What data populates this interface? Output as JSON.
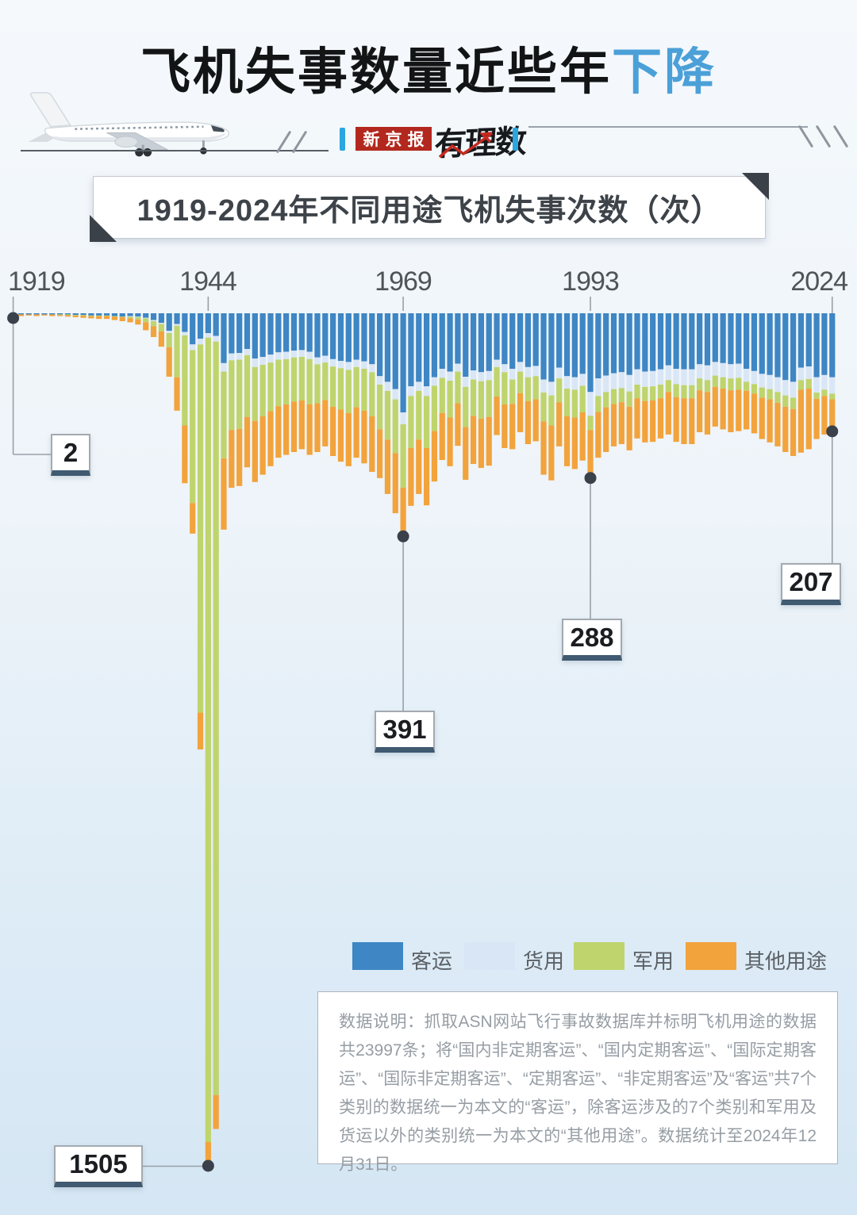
{
  "page": {
    "bg_top": "#f5f9fc",
    "bg_bottom": "#d5e6f4"
  },
  "header": {
    "title_black": "飞机失事数量近些年",
    "title_accent": "下降",
    "title_accent_color": "#4ba0d8",
    "brand_box_label": "新京报",
    "brand_box_color": "#b3281e",
    "brand_script_label": "有理数",
    "accent_bar_color": "#2aa6e0"
  },
  "banner": {
    "text": "1919-2024年不同用途飞机失事次数（次）"
  },
  "chart_data": {
    "type": "bar",
    "stacked": true,
    "orientation": "bars-hang-from-top",
    "start_year": 1919,
    "end_year": 2024,
    "unit": "次",
    "x_tick_labels": [
      "1919",
      "1944",
      "1969",
      "1993",
      "2024"
    ],
    "ylim": [
      0,
      1505
    ],
    "grid": false,
    "legend_position": "bottom",
    "series": [
      {
        "name": "客运",
        "color": "#3e86c4",
        "values": [
          1,
          2,
          2,
          2,
          2,
          2,
          2,
          2,
          3,
          3,
          4,
          4,
          4,
          5,
          6,
          5,
          6,
          8,
          12,
          17,
          31,
          19,
          33,
          55,
          45,
          35,
          40,
          88,
          71,
          70,
          63,
          80,
          77,
          73,
          69,
          68,
          66,
          65,
          68,
          78,
          75,
          81,
          84,
          86,
          82,
          85,
          90,
          111,
          121,
          134,
          175,
          129,
          121,
          129,
          113,
          98,
          103,
          89,
          112,
          101,
          104,
          102,
          82,
          90,
          98,
          86,
          95,
          93,
          117,
          121,
          96,
          111,
          113,
          107,
          139,
          115,
          110,
          106,
          104,
          109,
          99,
          103,
          102,
          99,
          92,
          98,
          99,
          99,
          90,
          92,
          86,
          88,
          90,
          89,
          98,
          102,
          107,
          109,
          113,
          118,
          121,
          96,
          94,
          113,
          109,
          113
        ]
      },
      {
        "name": "货用",
        "color": "#d9e6f5",
        "values": [
          0,
          0,
          0,
          0,
          0,
          0,
          0,
          0,
          0,
          0,
          0,
          0,
          0,
          0,
          0,
          1,
          1,
          1,
          2,
          2,
          4,
          3,
          6,
          10,
          10,
          8,
          10,
          15,
          12,
          12,
          11,
          15,
          14,
          14,
          13,
          13,
          12,
          12,
          13,
          12,
          12,
          13,
          13,
          14,
          13,
          13,
          14,
          15,
          16,
          18,
          21,
          17,
          16,
          17,
          15,
          16,
          16,
          14,
          18,
          16,
          16,
          16,
          13,
          14,
          19,
          17,
          18,
          18,
          23,
          24,
          19,
          22,
          22,
          21,
          42,
          31,
          29,
          28,
          28,
          29,
          27,
          27,
          27,
          27,
          26,
          27,
          28,
          28,
          25,
          26,
          24,
          25,
          25,
          25,
          23,
          23,
          24,
          25,
          26,
          27,
          28,
          22,
          22,
          27,
          26,
          29
        ]
      },
      {
        "name": "军用",
        "color": "#bfd46c",
        "values": [
          0,
          0,
          0,
          0,
          0,
          0,
          1,
          1,
          1,
          1,
          1,
          1,
          1,
          1,
          1,
          3,
          4,
          7,
          9,
          13,
          25,
          91,
          159,
          270,
          650,
          1420,
          1330,
          153,
          123,
          122,
          109,
          95,
          91,
          86,
          82,
          80,
          78,
          77,
          80,
          69,
          66,
          71,
          73,
          76,
          71,
          74,
          78,
          79,
          86,
          95,
          112,
          92,
          86,
          92,
          80,
          62,
          65,
          56,
          71,
          64,
          66,
          65,
          52,
          57,
          43,
          38,
          42,
          41,
          51,
          53,
          42,
          49,
          49,
          47,
          25,
          28,
          27,
          26,
          25,
          27,
          24,
          25,
          25,
          24,
          21,
          23,
          23,
          23,
          21,
          21,
          20,
          20,
          21,
          21,
          16,
          17,
          18,
          18,
          19,
          20,
          20,
          17,
          17,
          11,
          11,
          10
        ]
      },
      {
        "name": "其他用途",
        "color": "#f2a33c",
        "values": [
          1,
          3,
          2,
          3,
          2,
          3,
          2,
          3,
          3,
          4,
          4,
          5,
          5,
          6,
          7,
          7,
          9,
          14,
          19,
          27,
          52,
          59,
          102,
          54,
          65,
          42,
          60,
          126,
          102,
          101,
          89,
          108,
          103,
          97,
          91,
          89,
          89,
          86,
          89,
          86,
          82,
          87,
          92,
          94,
          89,
          93,
          98,
          86,
          96,
          106,
          83,
          102,
          96,
          101,
          89,
          83,
          86,
          75,
          93,
          85,
          87,
          86,
          68,
          77,
          80,
          69,
          76,
          74,
          94,
          97,
          78,
          88,
          91,
          85,
          82,
          81,
          79,
          75,
          74,
          77,
          71,
          73,
          73,
          71,
          75,
          79,
          81,
          81,
          74,
          75,
          70,
          72,
          74,
          73,
          68,
          70,
          73,
          76,
          77,
          80,
          83,
          111,
          107,
          71,
          68,
          55
        ]
      }
    ],
    "annotations": [
      {
        "year": 1919,
        "value": "2"
      },
      {
        "year": 1944,
        "value": "1505"
      },
      {
        "year": 1969,
        "value": "391"
      },
      {
        "year": 1993,
        "value": "288"
      },
      {
        "year": 2024,
        "value": "207"
      }
    ]
  },
  "legend": [
    {
      "label": "客运",
      "color": "#3e86c4"
    },
    {
      "label": "货用",
      "color": "#d9e6f5"
    },
    {
      "label": "军用",
      "color": "#bfd46c"
    },
    {
      "label": "其他用途",
      "color": "#f2a33c"
    }
  ],
  "note": {
    "text": "数据说明：抓取ASN网站飞行事故数据库并标明飞机用途的数据共23997条；将“国内非定期客运”、“国内定期客运”、“国际定期客运”、“国际非定期客运”、“定期客运”、“非定期客运”及“客运”共7个类别的数据统一为本文的“客运”，除客运涉及的7个类别和军用及货运以外的类别统一为本文的“其他用途”。数据统计至2024年12月31日。"
  }
}
